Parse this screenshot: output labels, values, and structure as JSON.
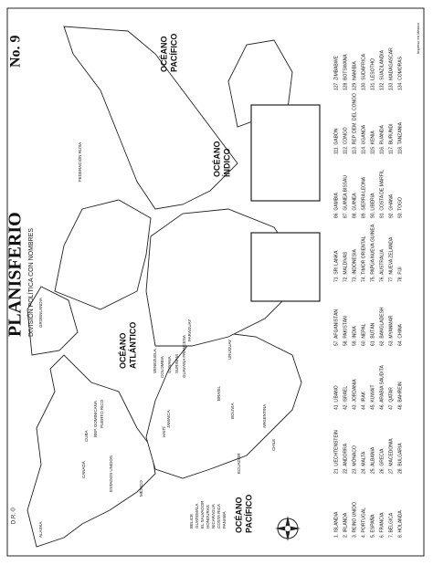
{
  "header": {
    "title": "PLANISFERIO",
    "number": "No. 9",
    "subtitle": "DIVISIÓN POLÍTICA CON NOMBRES",
    "copyright": "D.R. ©",
    "printed": "Impreso en México"
  },
  "oceans": [
    {
      "line1": "OCÉANO",
      "line2": "ATLÁNTICO"
    },
    {
      "line1": "OCÉANO",
      "line2": "PACÍFICO"
    },
    {
      "line1": "OCÉANO",
      "line2": "PACÍFICO"
    },
    {
      "line1": "OCÉANO",
      "line2": "ÍNDICO"
    }
  ],
  "countries": [
    "ALASKA",
    "CANADÁ",
    "ESTADOS UNIDOS",
    "MÉXICO",
    "CUBA",
    "REP. DOMINICANA",
    "HAITÍ",
    "JAMAICA",
    "PUERTO RICO",
    "VENEZUELA",
    "COLOMBIA",
    "GUYANA",
    "SURINAM",
    "GUAYANA FRANCESA",
    "ECUADOR",
    "BOLIVIA",
    "BRASIL",
    "PARAGUAY",
    "URUGUAY",
    "CHILE",
    "ARGENTINA",
    "BELICE",
    "GUATEMALA",
    "EL SALVADOR",
    "HONDURAS",
    "NICARAGUA",
    "COSTA RICA",
    "PANAMÁ",
    "GROENLANDIA",
    "FEDERACIÓN RUSA"
  ],
  "list": [
    [
      "1. ISLANDIA",
      "2. IRLANDA",
      "3. REINO UNIDO",
      "4. PORTUGAL",
      "5. ESPAÑA",
      "6. FRANCIA",
      "7. BÉLGICA",
      "8. HOLANDA"
    ],
    [
      "21. LIECHTENSTEIN",
      "22. ANDORRA",
      "23. MÓNACO",
      "24. MALTA",
      "25. ALBANIA",
      "26. GRECIA",
      "27. MACEDONIA",
      "28. BULGARIA"
    ],
    [
      "41. LÍBANO",
      "42. ISRAEL",
      "43. JORDANIA",
      "44. IRAK",
      "45. KUWAIT",
      "46. ARABIA SAUDITA",
      "47. QATAR",
      "48. BAHREIN"
    ],
    [
      "57. AFGANISTÁN",
      "58. PAKISTÁN",
      "59. INDIA",
      "60. NEPAL",
      "61. BUTÁN",
      "62. BANGLADESH",
      "63. MYANMAR",
      "64. CHINA"
    ],
    [
      "71. SRI LANKA",
      "72. MALDIVAS",
      "73. INDONESIA",
      "74. TIMOR ORIENTAL",
      "75. PAPÚA NUEVA GUINEA",
      "76. AUSTRALIA",
      "77. NUEVA ZELANDA",
      "78. FIJI"
    ],
    [
      "86. GAMBIA",
      "87. GUINEA BISSAU",
      "88. GUINEA",
      "89. SIERRA LEONA",
      "90. LIBERIA",
      "91. COSTA DE MARFIL",
      "92. GHANA",
      "93. TOGO"
    ],
    [
      "111. GABÓN",
      "112. CONGO",
      "113. REP. DEM. DEL CONGO",
      "114. UGANDA",
      "115. KENIA",
      "116. RUANDA",
      "117. BURUNDI",
      "118. TANZANIA"
    ],
    [
      "127. ZIMBABWE",
      "128. BOTSWANA",
      "129. NAMIBIA",
      "130. SUDÁFRICA",
      "131. LESOTHO",
      "132. SUAZILANDIA",
      "133. MADAGASCAR",
      "134. COMORAS"
    ]
  ]
}
